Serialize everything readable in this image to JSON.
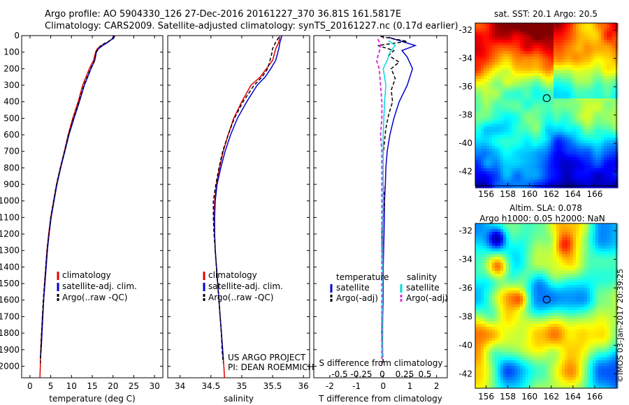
{
  "header": {
    "line1": "Argo profile: AO 5904330_126 27-Dec-2016 20161227_370 36.81S 161.5817E",
    "line2": "Climatology: CARS2009. Satellite-adjusted climatology: synTS_20161227.nc (0.17d earlier)"
  },
  "colors": {
    "climatology": "#e00000",
    "satellite": "#0000cc",
    "argo": "#000000",
    "satellite_s": "#00dddd",
    "argo_s": "#dd33dd"
  },
  "chart_data": [
    {
      "type": "line",
      "id": "temperature",
      "xlabel": "temperature (deg C)",
      "xlim": [
        -2,
        32
      ],
      "xticks": [
        "0",
        "5",
        "10",
        "15",
        "20",
        "25",
        "30"
      ],
      "ylim": [
        0,
        2070
      ],
      "yticks": [
        "0",
        "100",
        "200",
        "300",
        "400",
        "500",
        "600",
        "700",
        "800",
        "900",
        "1000",
        "1100",
        "1200",
        "1300",
        "1400",
        "1500",
        "1600",
        "1700",
        "1800",
        "1900",
        "2000"
      ],
      "legend": [
        "climatology",
        "satellite-adj. clim.",
        "Argo(..raw -QC)"
      ],
      "series": [
        {
          "key": "climatology",
          "color": "#e00000",
          "points": [
            [
              20.5,
              0
            ],
            [
              19.8,
              20
            ],
            [
              18.7,
              40
            ],
            [
              17.2,
              60
            ],
            [
              16.2,
              80
            ],
            [
              15.8,
              100
            ],
            [
              15.3,
              150
            ],
            [
              14.3,
              200
            ],
            [
              13.5,
              250
            ],
            [
              12.7,
              300
            ],
            [
              11.6,
              400
            ],
            [
              10.3,
              500
            ],
            [
              9.2,
              600
            ],
            [
              8.3,
              700
            ],
            [
              7.3,
              800
            ],
            [
              6.4,
              900
            ],
            [
              5.7,
              1000
            ],
            [
              5.0,
              1100
            ],
            [
              4.5,
              1200
            ],
            [
              4.1,
              1300
            ],
            [
              3.8,
              1400
            ],
            [
              3.5,
              1500
            ],
            [
              3.3,
              1600
            ],
            [
              3.0,
              1700
            ],
            [
              2.8,
              1800
            ],
            [
              2.6,
              1900
            ],
            [
              2.5,
              2000
            ],
            [
              2.4,
              2070
            ]
          ]
        },
        {
          "key": "satellite",
          "color": "#0000cc",
          "points": [
            [
              20.2,
              0
            ],
            [
              19.8,
              20
            ],
            [
              18.8,
              40
            ],
            [
              17.5,
              60
            ],
            [
              16.5,
              80
            ],
            [
              16.0,
              100
            ],
            [
              15.6,
              150
            ],
            [
              14.7,
              200
            ],
            [
              13.9,
              250
            ],
            [
              13.1,
              300
            ],
            [
              11.9,
              400
            ],
            [
              10.6,
              500
            ],
            [
              9.4,
              600
            ],
            [
              8.4,
              700
            ],
            [
              7.4,
              800
            ],
            [
              6.5,
              900
            ],
            [
              5.8,
              1000
            ],
            [
              5.1,
              1100
            ],
            [
              4.6,
              1200
            ],
            [
              4.2,
              1300
            ],
            [
              3.9,
              1400
            ],
            [
              3.6,
              1500
            ],
            [
              3.3,
              1600
            ],
            [
              3.1,
              1700
            ],
            [
              2.9,
              1800
            ],
            [
              2.7,
              1900
            ],
            [
              2.5,
              1950
            ]
          ]
        },
        {
          "key": "argo",
          "color": "#000000",
          "points": [
            [
              20.4,
              5
            ],
            [
              20.0,
              20
            ],
            [
              18.5,
              40
            ],
            [
              17.0,
              60
            ],
            [
              16.5,
              80
            ],
            [
              15.9,
              100
            ],
            [
              15.6,
              150
            ],
            [
              14.6,
              200
            ],
            [
              13.8,
              250
            ],
            [
              13.0,
              300
            ],
            [
              11.8,
              400
            ],
            [
              10.5,
              500
            ],
            [
              9.3,
              600
            ],
            [
              8.3,
              700
            ],
            [
              7.3,
              800
            ],
            [
              6.4,
              900
            ],
            [
              5.7,
              1000
            ],
            [
              5.0,
              1100
            ],
            [
              4.6,
              1200
            ],
            [
              4.1,
              1300
            ],
            [
              3.8,
              1400
            ],
            [
              3.5,
              1500
            ],
            [
              3.2,
              1600
            ],
            [
              3.0,
              1700
            ],
            [
              2.8,
              1800
            ],
            [
              2.6,
              1900
            ],
            [
              2.5,
              1980
            ]
          ]
        }
      ]
    },
    {
      "type": "line",
      "id": "salinity",
      "xlabel": "salinity",
      "xlim": [
        33.8,
        36.1
      ],
      "xticks": [
        "34",
        "34.5",
        "35",
        "35.5",
        "36"
      ],
      "ylim": [
        0,
        2070
      ],
      "legend": [
        "climatology",
        "satellite-adj. clim.",
        "Argo(..raw -QC)"
      ],
      "annotations": [
        "US ARGO PROJECT",
        "PI: DEAN ROEMMICH"
      ],
      "series": [
        {
          "key": "climatology",
          "color": "#e00000",
          "points": [
            [
              35.62,
              0
            ],
            [
              35.6,
              40
            ],
            [
              35.55,
              80
            ],
            [
              35.5,
              150
            ],
            [
              35.4,
              200
            ],
            [
              35.3,
              250
            ],
            [
              35.15,
              300
            ],
            [
              35.0,
              400
            ],
            [
              34.87,
              500
            ],
            [
              34.78,
              600
            ],
            [
              34.7,
              700
            ],
            [
              34.64,
              800
            ],
            [
              34.59,
              900
            ],
            [
              34.56,
              1000
            ],
            [
              34.55,
              1100
            ],
            [
              34.56,
              1200
            ],
            [
              34.57,
              1300
            ],
            [
              34.59,
              1400
            ],
            [
              34.61,
              1500
            ],
            [
              34.63,
              1600
            ],
            [
              34.65,
              1700
            ],
            [
              34.67,
              1800
            ],
            [
              34.69,
              1900
            ],
            [
              34.71,
              2000
            ],
            [
              34.72,
              2070
            ]
          ]
        },
        {
          "key": "satellite",
          "color": "#0000cc",
          "points": [
            [
              35.65,
              0
            ],
            [
              35.62,
              40
            ],
            [
              35.6,
              80
            ],
            [
              35.55,
              150
            ],
            [
              35.47,
              200
            ],
            [
              35.38,
              250
            ],
            [
              35.25,
              300
            ],
            [
              35.08,
              400
            ],
            [
              34.93,
              500
            ],
            [
              34.82,
              600
            ],
            [
              34.73,
              700
            ],
            [
              34.66,
              800
            ],
            [
              34.6,
              900
            ],
            [
              34.57,
              1000
            ],
            [
              34.56,
              1100
            ],
            [
              34.56,
              1200
            ],
            [
              34.57,
              1300
            ],
            [
              34.59,
              1400
            ],
            [
              34.61,
              1500
            ],
            [
              34.63,
              1600
            ],
            [
              34.65,
              1700
            ],
            [
              34.67,
              1800
            ],
            [
              34.69,
              1900
            ],
            [
              34.7,
              1960
            ]
          ]
        },
        {
          "key": "argo",
          "color": "#000000",
          "points": [
            [
              35.6,
              10
            ],
            [
              35.55,
              40
            ],
            [
              35.5,
              80
            ],
            [
              35.48,
              120
            ],
            [
              35.42,
              200
            ],
            [
              35.33,
              250
            ],
            [
              35.2,
              300
            ],
            [
              35.02,
              400
            ],
            [
              34.88,
              500
            ],
            [
              34.78,
              600
            ],
            [
              34.69,
              700
            ],
            [
              34.63,
              800
            ],
            [
              34.58,
              900
            ],
            [
              34.54,
              1000
            ],
            [
              34.54,
              1100
            ],
            [
              34.55,
              1200
            ],
            [
              34.57,
              1300
            ],
            [
              34.59,
              1400
            ],
            [
              34.61,
              1500
            ],
            [
              34.63,
              1600
            ],
            [
              34.65,
              1700
            ],
            [
              34.67,
              1800
            ],
            [
              34.68,
              1900
            ],
            [
              34.7,
              1980
            ]
          ]
        }
      ]
    },
    {
      "type": "line",
      "id": "difference",
      "xlabel": "T difference from climatology",
      "xlabel_top": "S difference from climatology",
      "xlim": [
        -2.6,
        2.4
      ],
      "xticks": [
        "-2",
        "-1",
        "0",
        "1",
        "2"
      ],
      "xticks_top": [
        "-0.5",
        "-0.25",
        "0",
        "0.25",
        "0.5"
      ],
      "ylim": [
        0,
        2070
      ],
      "legend_left_title": "temperature",
      "legend_right_title": "salinity",
      "legend_left": [
        "satellite",
        "Argo(-adj)"
      ],
      "legend_right": [
        "satellite",
        "Argo(-adj)"
      ],
      "series": [
        {
          "key": "satellite",
          "color": "#0000cc",
          "points": [
            [
              0.2,
              10
            ],
            [
              0.6,
              30
            ],
            [
              1.2,
              60
            ],
            [
              0.7,
              90
            ],
            [
              0.9,
              130
            ],
            [
              1.1,
              200
            ],
            [
              0.9,
              300
            ],
            [
              0.6,
              400
            ],
            [
              0.4,
              500
            ],
            [
              0.25,
              600
            ],
            [
              0.15,
              700
            ],
            [
              0.1,
              800
            ],
            [
              0.08,
              900
            ],
            [
              0.05,
              1000
            ],
            [
              0.03,
              1200
            ],
            [
              0.0,
              1400
            ],
            [
              0.0,
              1600
            ],
            [
              -0.03,
              1800
            ],
            [
              -0.03,
              1950
            ]
          ]
        },
        {
          "key": "argo",
          "color": "#000000",
          "points": [
            [
              -0.1,
              5
            ],
            [
              0.4,
              20
            ],
            [
              0.9,
              35
            ],
            [
              -0.2,
              60
            ],
            [
              0.4,
              90
            ],
            [
              0.2,
              120
            ],
            [
              0.6,
              160
            ],
            [
              0.3,
              200
            ],
            [
              0.45,
              260
            ],
            [
              0.3,
              330
            ],
            [
              0.35,
              400
            ],
            [
              0.2,
              480
            ],
            [
              0.1,
              560
            ],
            [
              0.05,
              640
            ],
            [
              0.0,
              720
            ],
            [
              0.0,
              900
            ],
            [
              0.05,
              1000
            ],
            [
              -0.05,
              1200
            ],
            [
              0.0,
              1500
            ],
            [
              -0.05,
              1800
            ],
            [
              0.0,
              1980
            ]
          ]
        },
        {
          "key": "satellite_s",
          "color": "#00dddd",
          "points": [
            [
              0.2,
              30
            ],
            [
              0.45,
              60
            ],
            [
              0.25,
              100
            ],
            [
              0.15,
              150
            ],
            [
              0.0,
              200
            ],
            [
              0.1,
              300
            ],
            [
              0.05,
              400
            ],
            [
              0.0,
              600
            ],
            [
              0.0,
              800
            ],
            [
              0.0,
              1000
            ],
            [
              -0.02,
              1300
            ],
            [
              -0.02,
              1600
            ],
            [
              -0.02,
              1950
            ]
          ]
        },
        {
          "key": "argo_s",
          "color": "#dd33dd",
          "points": [
            [
              -0.2,
              20
            ],
            [
              -0.1,
              60
            ],
            [
              -0.15,
              100
            ],
            [
              -0.25,
              150
            ],
            [
              -0.15,
              200
            ],
            [
              -0.1,
              300
            ],
            [
              -0.05,
              400
            ],
            [
              -0.05,
              500
            ],
            [
              -0.1,
              600
            ],
            [
              -0.05,
              700
            ],
            [
              -0.05,
              900
            ],
            [
              -0.05,
              1200
            ],
            [
              -0.05,
              1500
            ],
            [
              -0.05,
              1800
            ],
            [
              -0.05,
              2000
            ]
          ]
        }
      ]
    },
    {
      "type": "heatmap",
      "id": "sst_map",
      "title": "sat. SST: 20.1  Argo: 20.5",
      "xticks": [
        "156",
        "158",
        "160",
        "162",
        "164",
        "166"
      ],
      "yticks": [
        "-32",
        "-34",
        "-36",
        "-38",
        "-40",
        "-42"
      ],
      "xlim": [
        155,
        168
      ],
      "ylim": [
        -43,
        -31.5
      ],
      "marker": [
        161.58,
        -36.81
      ]
    },
    {
      "type": "heatmap",
      "id": "sla_map",
      "title": "Altim. SLA: 0.078",
      "subtitle": "Argo h1000: 0.05 h2000: NaN",
      "xticks": [
        "156",
        "158",
        "160",
        "162",
        "164",
        "166"
      ],
      "yticks": [
        "-32",
        "-34",
        "-36",
        "-38",
        "-40",
        "-42"
      ],
      "xlim": [
        155,
        168
      ],
      "ylim": [
        -43,
        -31.5
      ],
      "marker": [
        161.58,
        -36.81
      ]
    }
  ],
  "footer": {
    "imos": "©IMOS 03-Jan-2017 20:39:25"
  }
}
